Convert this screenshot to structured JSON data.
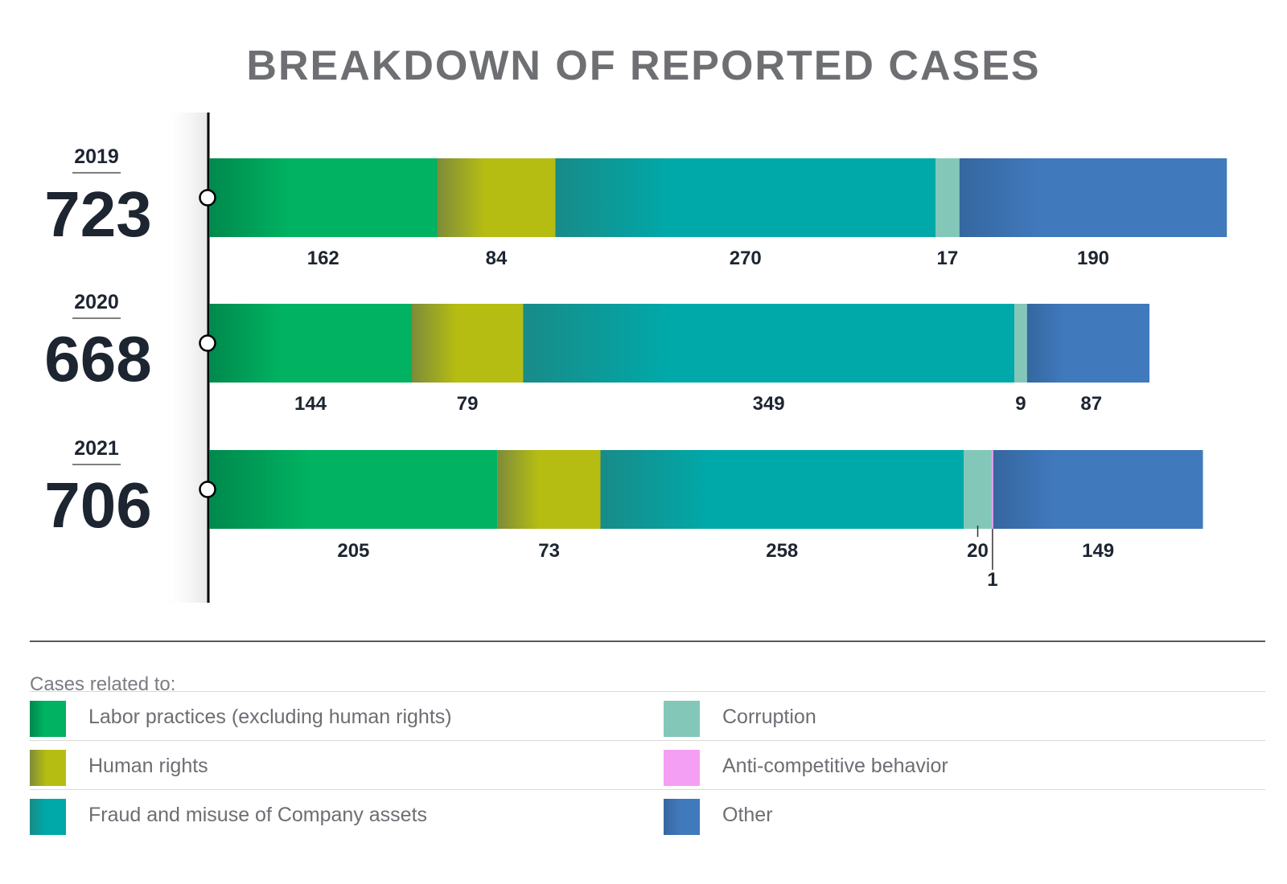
{
  "chart_data": {
    "type": "bar",
    "orientation": "horizontal",
    "stacked": true,
    "title": "BREAKDOWN OF REPORTED CASES",
    "categories": [
      "2019",
      "2020",
      "2021"
    ],
    "totals": [
      "723",
      "668",
      "706"
    ],
    "series": [
      {
        "name": "Labor practices (excluding human rights)",
        "color": "#00b261",
        "values": [
          162,
          144,
          205
        ]
      },
      {
        "name": "Human rights",
        "color": "#b5bd12",
        "values": [
          84,
          79,
          73
        ]
      },
      {
        "name": "Fraud and misuse of Company assets",
        "color": "#00a9a9",
        "values": [
          270,
          349,
          258
        ]
      },
      {
        "name": "Corruption",
        "color": "#83c7b9",
        "values": [
          17,
          9,
          20
        ]
      },
      {
        "name": "Anti-competitive behavior",
        "color": "#f59ff4",
        "values": [
          0,
          0,
          1
        ]
      },
      {
        "name": "Other",
        "color": "#4179bd",
        "values": [
          190,
          87,
          149
        ]
      }
    ],
    "legend_position": "bottom"
  },
  "legend": {
    "heading": "Cases related to:"
  }
}
